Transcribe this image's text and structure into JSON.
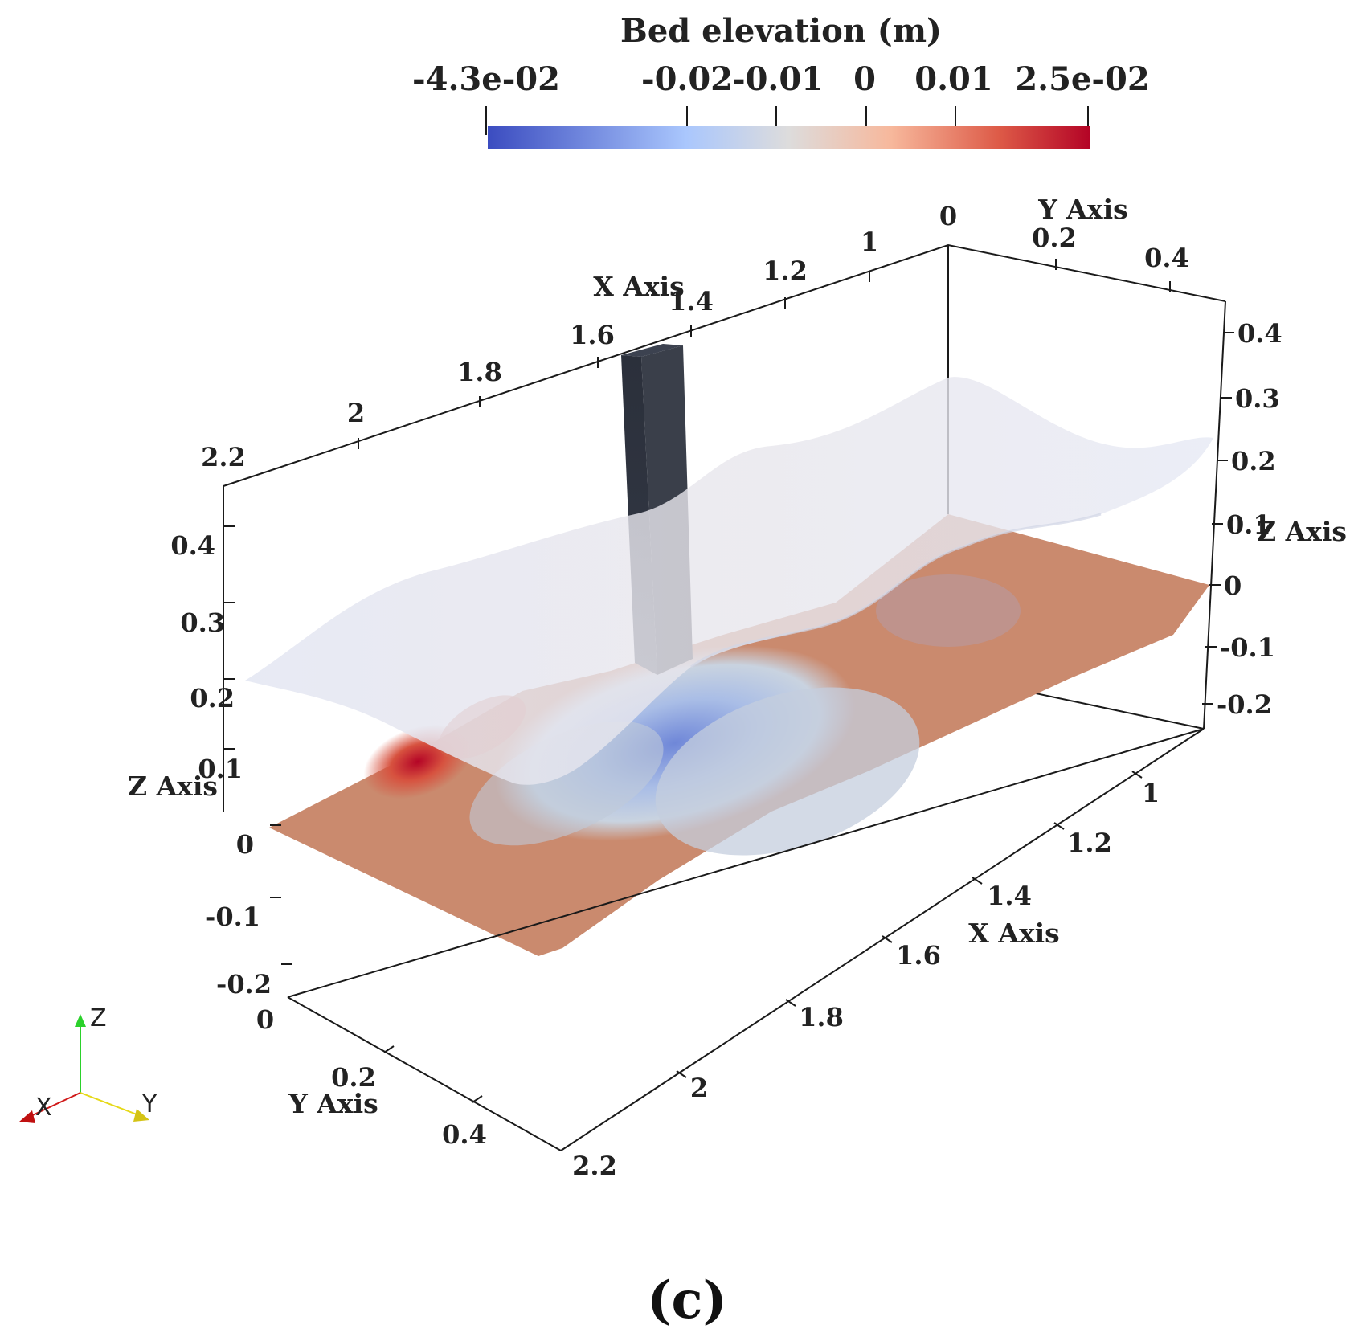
{
  "colorbar": {
    "title": "Bed elevation (m)",
    "ticks": [
      "-4.3e-02",
      "-0.02",
      "-0.01",
      "0",
      "0.01",
      "2.5e-02"
    ],
    "colors": [
      "#3b4cc0",
      "#aac7fd",
      "#dddcdc",
      "#f7b89c",
      "#dd5a47",
      "#b40426"
    ]
  },
  "axes": {
    "x_title": "X Axis",
    "y_title": "Y Axis",
    "z_title": "Z Axis",
    "x_ticks": [
      "1",
      "1.2",
      "1.4",
      "1.6",
      "1.8",
      "2",
      "2.2"
    ],
    "y_ticks": [
      "0",
      "0.2",
      "0.4"
    ],
    "z_ticks": [
      "-0.2",
      "-0.1",
      "0",
      "0.1",
      "0.2",
      "0.3",
      "0.4"
    ]
  },
  "orientation_triad": {
    "x": "X",
    "y": "Y",
    "z": "Z"
  },
  "caption": "(c)"
}
